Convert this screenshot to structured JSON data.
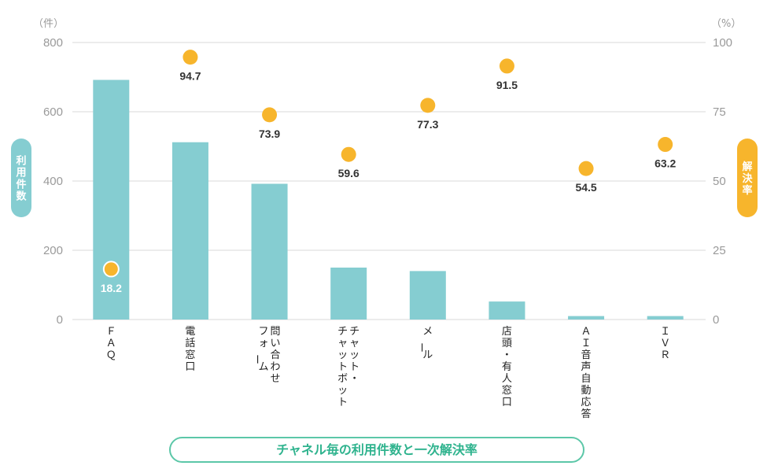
{
  "chart_data": {
    "type": "bar",
    "categories": [
      "ＦＡＱ",
      "電話窓口",
      "問い合わせ\nフォーム",
      "チャット・\nチャットボット",
      "メール",
      "店頭・有人窓口",
      "ＡＩ音声自動応答",
      "ＩＶＲ"
    ],
    "series": [
      {
        "name": "利用件数",
        "type": "bar",
        "axis": "left",
        "values": [
          692,
          512,
          392,
          150,
          140,
          52,
          10,
          10
        ],
        "color": "#85cdd1"
      },
      {
        "name": "解決率",
        "type": "scatter",
        "axis": "right",
        "values": [
          18.2,
          94.7,
          73.9,
          59.6,
          77.3,
          91.5,
          54.5,
          63.2
        ],
        "labels": [
          "18.2",
          "94.7",
          "73.9",
          "59.6",
          "77.3",
          "91.5",
          "54.5",
          "63.2"
        ],
        "color": "#f7b52c"
      }
    ],
    "y_left": {
      "unit": "（件）",
      "ticks": [
        "0",
        "200",
        "400",
        "600",
        "800"
      ],
      "lim": [
        0,
        800
      ],
      "label": "利用件数",
      "label_color": "#85cdd1"
    },
    "y_right": {
      "unit": "（%）",
      "ticks": [
        "0",
        "25",
        "50",
        "75",
        "100"
      ],
      "lim": [
        0,
        100
      ],
      "label": "解決率",
      "label_color": "#f7b52c"
    },
    "title": "チャネル毎の利用件数と一次解決率",
    "grid": true,
    "legend": "none"
  },
  "colors": {
    "grid": "#d9d9d9",
    "caption_border": "#5cc7a8",
    "caption_text": "#2fb38e"
  }
}
